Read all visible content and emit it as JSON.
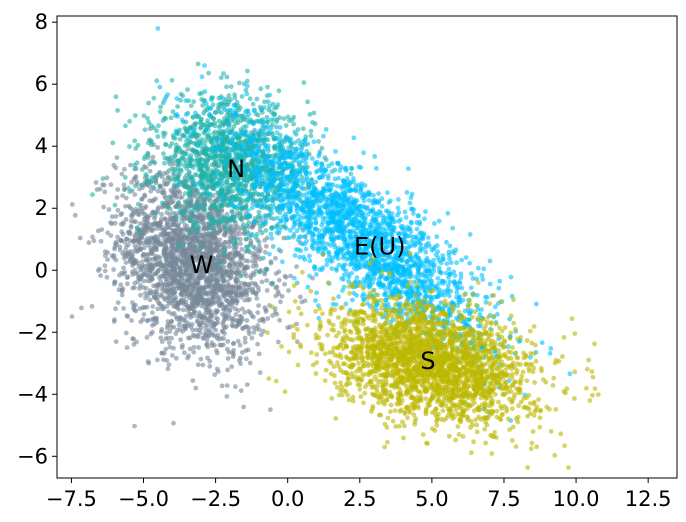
{
  "chart_data": {
    "type": "scatter",
    "title": "",
    "xlabel": "",
    "ylabel": "",
    "xlim": [
      -8.0,
      13.5
    ],
    "ylim": [
      -6.7,
      8.2
    ],
    "grid": false,
    "legend": "none",
    "x_ticks": [
      -7.5,
      -5.0,
      -2.5,
      0.0,
      2.5,
      5.0,
      7.5,
      10.0,
      12.5
    ],
    "x_tick_labels": [
      "−7.5",
      "−5.0",
      "−2.5",
      "0.0",
      "2.5",
      "5.0",
      "7.5",
      "10.0",
      "12.5"
    ],
    "y_ticks": [
      -6,
      -4,
      -2,
      0,
      2,
      4,
      6,
      8
    ],
    "y_tick_labels": [
      "−6",
      "−4",
      "−2",
      "0",
      "2",
      "4",
      "6",
      "8"
    ],
    "series": [
      {
        "name": "",
        "color": "#778899",
        "center": [
          -3.3,
          0.3
        ],
        "spread": [
          1.3,
          1.45
        ],
        "correlation": -0.25,
        "count": 2400,
        "annotation": {
          "text": "W",
          "x": -3.4,
          "y": 0.2
        }
      },
      {
        "name": "",
        "color": "#20b2aa",
        "center": [
          -1.9,
          3.4
        ],
        "spread": [
          1.35,
          1.05
        ],
        "correlation": -0.15,
        "count": 1500,
        "annotation": {
          "text": "N",
          "x": -2.1,
          "y": 3.3
        }
      },
      {
        "name": "",
        "color": "#00bfff",
        "center": [
          2.6,
          1.0
        ],
        "spread": [
          2.2,
          1.75
        ],
        "correlation": -0.82,
        "count": 2200,
        "annotation": {
          "text": "E(U)",
          "x": 2.3,
          "y": 0.8
        }
      },
      {
        "name": "",
        "color": "#bdb800",
        "center": [
          5.0,
          -3.0
        ],
        "spread": [
          1.75,
          0.95
        ],
        "correlation": -0.3,
        "count": 2400,
        "annotation": {
          "text": "S",
          "x": 4.6,
          "y": -2.9
        }
      }
    ]
  }
}
